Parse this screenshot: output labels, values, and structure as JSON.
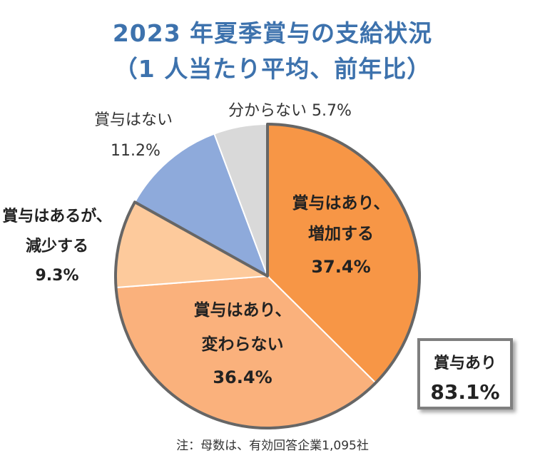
{
  "title_line1": "2023 年夏季賞与の支給状況",
  "title_line2": "（1 人当たり平均、前年比）",
  "chart_data": {
    "type": "pie",
    "title": "2023 年夏季賞与の支給状況（1 人当たり平均、前年比）",
    "start": "top, clockwise",
    "slices": [
      {
        "label": [
          "賞与はあり、",
          "増加する"
        ],
        "value": 37.4,
        "value_label": "37.4%",
        "color": "#f79646",
        "placement": "inside"
      },
      {
        "label": [
          "賞与はあり、",
          "変わらない"
        ],
        "value": 36.4,
        "value_label": "36.4%",
        "color": "#fab17c",
        "placement": "inside"
      },
      {
        "label": [
          "賞与はあるが、",
          "減少する"
        ],
        "value": 9.3,
        "value_label": "9.3%",
        "color": "#fdca9c",
        "placement": "outside-left"
      },
      {
        "label": [
          "賞与はない"
        ],
        "value": 11.2,
        "value_label": "11.2%",
        "color": "#8eaadb",
        "placement": "outside-top-left"
      },
      {
        "label": [
          "分からない"
        ],
        "value": 5.7,
        "value_label": "5.7%",
        "color": "#d9d9d9",
        "placement": "outside-top"
      }
    ],
    "group_outline": {
      "slices": [
        0,
        1,
        2
      ],
      "color": "#666666"
    },
    "summary_box": {
      "label": "賞与あり",
      "value": "83.1%"
    }
  },
  "footnote": "注：母数は、有効回答企業1,095社"
}
